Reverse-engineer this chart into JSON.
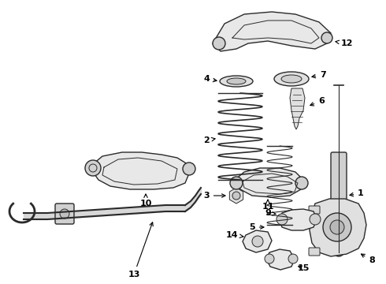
{
  "background_color": "#ffffff",
  "line_color": "#2a2a2a",
  "label_color": "#000000",
  "figure_width": 4.9,
  "figure_height": 3.6,
  "dpi": 100
}
